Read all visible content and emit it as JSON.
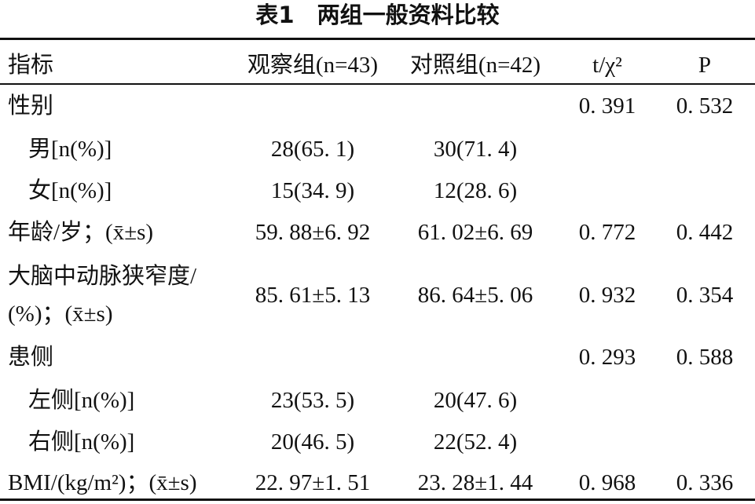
{
  "header": {
    "title": "表1　两组一般资料比较"
  },
  "table": {
    "columns": [
      "指标",
      "观察组(n=43)",
      "对照组(n=42)",
      "t/χ²",
      "P"
    ],
    "rows": [
      [
        "性别",
        null,
        null,
        "0. 391",
        "0. 532"
      ],
      [
        "男[n(%)]",
        "28(65. 1)",
        "30(71. 4)",
        null,
        null
      ],
      [
        "女[n(%)]",
        "15(34. 9)",
        "12(28. 6)",
        null,
        null
      ],
      [
        "年龄/岁；(x̄±s)",
        "59. 88±6. 92",
        "61. 02±6. 69",
        "0. 772",
        "0. 442"
      ],
      [
        [
          "大脑中动脉狭窄度/",
          "(%)；(x̄±s)"
        ],
        "85. 61±5. 13",
        "86. 64±5. 06",
        "0. 932",
        "0. 354"
      ],
      [
        "患侧",
        null,
        null,
        "0. 293",
        "0. 588"
      ],
      [
        "左侧[n(%)]",
        "23(53. 5)",
        "20(47. 6)",
        null,
        null
      ],
      [
        "右侧[n(%)]",
        "20(46. 5)",
        "22(52. 4)",
        null,
        null
      ],
      [
        "BMI/(kg/m²)；(x̄±s)",
        "22. 97±1. 51",
        "23. 28±1. 44",
        "0. 968",
        "0. 336"
      ]
    ]
  }
}
